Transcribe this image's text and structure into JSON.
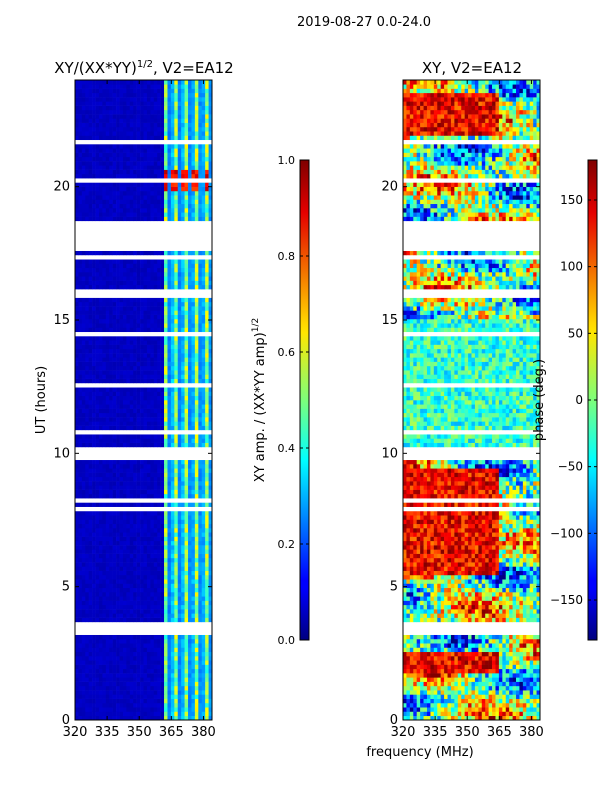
{
  "suptitle": "2019-08-27 0.0-24.0",
  "shared_xlabel": "frequency (MHz)",
  "chart_data": [
    {
      "type": "heatmap",
      "title": "XY/(XX*YY)",
      "title_exponent": "1/2",
      "title_suffix": ", V2=EA12",
      "xlabel": "",
      "ylabel": "UT (hours)",
      "xlim": [
        320,
        384
      ],
      "ylim": [
        0,
        24
      ],
      "xticks": [
        320,
        335,
        350,
        365,
        380
      ],
      "yticks": [
        0,
        5,
        10,
        15,
        20
      ],
      "colorbar": {
        "label": "XY amp. / (XX*YY amp)",
        "label_exponent": "1/2",
        "range": [
          0.0,
          1.0
        ],
        "ticks": [
          "0.0",
          "0.2",
          "0.4",
          "0.6",
          "0.8",
          "1.0"
        ],
        "tick_values": [
          0.0,
          0.2,
          0.4,
          0.6,
          0.8,
          1.0
        ],
        "colormap": "jet"
      },
      "approx_structure": {
        "low_background_value": 0.05,
        "bright_band_freq_range_mhz": [
          361,
          384
        ],
        "bright_values_range": [
          0.2,
          0.6
        ],
        "hot_spot_ut_hours": [
          19.8,
          20.7
        ],
        "hot_spot_value": 0.95,
        "data_gap_ut_hours": [
          [
            17.6,
            18.6
          ],
          [
            9.8,
            10.0
          ],
          [
            3.4,
            3.6
          ],
          [
            15.9,
            16.2
          ]
        ]
      }
    },
    {
      "type": "heatmap",
      "title": "XY, V2=EA12",
      "xlabel": "",
      "ylabel": "",
      "xlim": [
        320,
        384
      ],
      "ylim": [
        0,
        24
      ],
      "xticks": [
        320,
        335,
        350,
        365,
        380
      ],
      "yticks": [
        0,
        5,
        10,
        15,
        20
      ],
      "colorbar": {
        "label": "phase (deg.)",
        "range": [
          -180,
          180
        ],
        "ticks": [
          "−150",
          "−100",
          "−50",
          "0",
          "50",
          "100",
          "150"
        ],
        "tick_values": [
          -150,
          -100,
          -50,
          0,
          50,
          100,
          150
        ],
        "colormap": "jet"
      },
      "approx_structure": {
        "value_range_deg": [
          -180,
          180
        ],
        "hot_regions_ut_hours": [
          [
            5.5,
            9.5
          ],
          [
            1.8,
            2.6
          ],
          [
            22.0,
            23.5
          ]
        ],
        "cool_region_ut_hours": [
          [
            10.0,
            15.0
          ]
        ],
        "data_gap_ut_hours": [
          [
            17.6,
            18.6
          ],
          [
            9.8,
            10.0
          ],
          [
            3.4,
            3.6
          ],
          [
            15.9,
            16.2
          ]
        ]
      }
    }
  ]
}
